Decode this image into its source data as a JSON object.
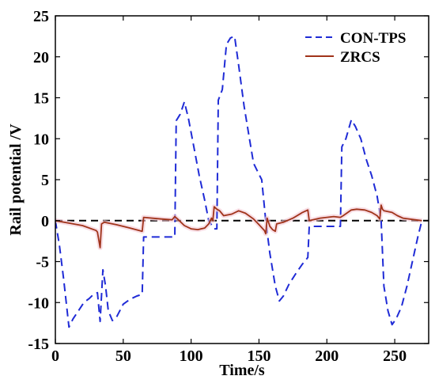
{
  "chart_data": {
    "type": "line",
    "title": "",
    "xlabel": "Time/s",
    "ylabel": "Rail potential /V",
    "xlim": [
      0,
      275
    ],
    "ylim": [
      -15,
      25
    ],
    "x_ticks": [
      0,
      50,
      100,
      150,
      200,
      250
    ],
    "y_ticks": [
      -15,
      -10,
      -5,
      0,
      5,
      10,
      15,
      20,
      25
    ],
    "grid": false,
    "legend_position": "top-right",
    "zero_reference_line": {
      "y": 0,
      "style": "dashed",
      "color": "#000000"
    },
    "series": [
      {
        "name": "CON-TPS",
        "style": "dashed",
        "color": "#1f2bd6",
        "points": [
          [
            0,
            0
          ],
          [
            3,
            -3
          ],
          [
            6,
            -7
          ],
          [
            10,
            -13
          ],
          [
            13,
            -12
          ],
          [
            17,
            -11
          ],
          [
            21,
            -10
          ],
          [
            25,
            -9.5
          ],
          [
            28,
            -9
          ],
          [
            31,
            -8.8
          ],
          [
            33,
            -12.3
          ],
          [
            35,
            -6
          ],
          [
            37,
            -8
          ],
          [
            39,
            -11
          ],
          [
            42,
            -12.2
          ],
          [
            45,
            -11.8
          ],
          [
            50,
            -10.2
          ],
          [
            55,
            -9.6
          ],
          [
            60,
            -9.2
          ],
          [
            64,
            -9
          ],
          [
            65,
            -2
          ],
          [
            70,
            -2
          ],
          [
            80,
            -2
          ],
          [
            88,
            -2
          ],
          [
            89,
            12.2
          ],
          [
            92,
            13
          ],
          [
            95,
            14.5
          ],
          [
            98,
            12.5
          ],
          [
            102,
            9
          ],
          [
            106,
            5.5
          ],
          [
            110,
            2.5
          ],
          [
            113,
            0
          ],
          [
            117,
            -1
          ],
          [
            119,
            -1
          ],
          [
            120,
            14.7
          ],
          [
            123,
            16
          ],
          [
            126,
            21.5
          ],
          [
            129,
            22.3
          ],
          [
            132,
            22.5
          ],
          [
            135,
            19
          ],
          [
            139,
            14
          ],
          [
            143,
            10
          ],
          [
            146,
            7
          ],
          [
            149,
            6
          ],
          [
            152,
            5
          ],
          [
            155,
            0
          ],
          [
            158,
            -4
          ],
          [
            162,
            -8
          ],
          [
            165,
            -9.8
          ],
          [
            168,
            -9.2
          ],
          [
            172,
            -7.8
          ],
          [
            177,
            -6.5
          ],
          [
            182,
            -5.3
          ],
          [
            186,
            -4.5
          ],
          [
            187,
            -0.7
          ],
          [
            195,
            -0.7
          ],
          [
            205,
            -0.7
          ],
          [
            210,
            -0.7
          ],
          [
            211,
            9
          ],
          [
            214,
            10
          ],
          [
            218,
            12.3
          ],
          [
            221,
            11.5
          ],
          [
            225,
            10
          ],
          [
            229,
            7.5
          ],
          [
            233,
            5.5
          ],
          [
            237,
            3
          ],
          [
            240,
            0
          ],
          [
            242,
            -8
          ],
          [
            245,
            -11
          ],
          [
            248,
            -12.7
          ],
          [
            251,
            -12
          ],
          [
            255,
            -10.5
          ],
          [
            259,
            -8
          ],
          [
            263,
            -5
          ],
          [
            267,
            -2
          ],
          [
            270,
            0
          ]
        ]
      },
      {
        "name": "ZRCS",
        "style": "solid",
        "color": "#a0331a",
        "points": [
          [
            0,
            0
          ],
          [
            10,
            -0.3
          ],
          [
            20,
            -0.6
          ],
          [
            30,
            -1.2
          ],
          [
            31,
            -1.4
          ],
          [
            33,
            -3.3
          ],
          [
            34,
            -0.4
          ],
          [
            36,
            -0.2
          ],
          [
            45,
            -0.5
          ],
          [
            55,
            -0.9
          ],
          [
            64,
            -1.3
          ],
          [
            65,
            0.4
          ],
          [
            78,
            0.2
          ],
          [
            86,
            0.1
          ],
          [
            88,
            0.5
          ],
          [
            90,
            0.2
          ],
          [
            95,
            -0.6
          ],
          [
            100,
            -1
          ],
          [
            105,
            -1.1
          ],
          [
            110,
            -0.9
          ],
          [
            113,
            -0.4
          ],
          [
            115,
            0.3
          ],
          [
            116,
            0
          ],
          [
            117,
            1.7
          ],
          [
            119,
            1.4
          ],
          [
            121,
            1.2
          ],
          [
            124,
            0.6
          ],
          [
            130,
            0.8
          ],
          [
            135,
            1.2
          ],
          [
            140,
            0.9
          ],
          [
            146,
            0.2
          ],
          [
            150,
            -0.5
          ],
          [
            154,
            -1.2
          ],
          [
            155,
            -1.6
          ],
          [
            156,
            0.3
          ],
          [
            158,
            -0.7
          ],
          [
            160,
            -1.1
          ],
          [
            162,
            -1.3
          ],
          [
            163,
            -0.4
          ],
          [
            168,
            -0.2
          ],
          [
            175,
            0.3
          ],
          [
            182,
            1
          ],
          [
            186,
            1.3
          ],
          [
            187,
            0
          ],
          [
            195,
            0.3
          ],
          [
            205,
            0.5
          ],
          [
            210,
            0.4
          ],
          [
            212,
            0.6
          ],
          [
            218,
            1.3
          ],
          [
            222,
            1.4
          ],
          [
            228,
            1.3
          ],
          [
            233,
            1
          ],
          [
            237,
            0.6
          ],
          [
            239,
            0.2
          ],
          [
            240,
            1.9
          ],
          [
            241,
            1.4
          ],
          [
            242,
            1.2
          ],
          [
            248,
            1
          ],
          [
            252,
            0.6
          ],
          [
            256,
            0.3
          ],
          [
            265,
            0.1
          ],
          [
            270,
            0
          ]
        ]
      }
    ]
  }
}
